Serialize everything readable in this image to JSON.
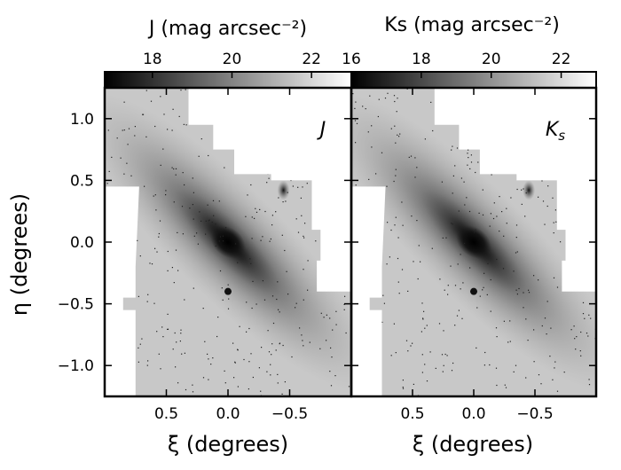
{
  "chart_data": {
    "type": "heatmap",
    "ylabel": "η (degrees)",
    "y_ticks": [
      "1.0",
      "0.5",
      "0.0",
      "−0.5",
      "−1.0"
    ],
    "y_tick_values": [
      1.0,
      0.5,
      0.0,
      -0.5,
      -1.0
    ],
    "ylim": [
      -1.25,
      1.25
    ],
    "xlim": [
      1.0,
      -1.0
    ],
    "grid": false,
    "colormap": "grayscale (dark = bright)",
    "panels": [
      {
        "label": "J",
        "band": "J",
        "xlabel": "ξ (degrees)",
        "x_ticks": [
          "0.5",
          "0.0",
          "−0.5"
        ],
        "x_tick_values": [
          0.5,
          0.0,
          -0.5
        ],
        "colorbar": {
          "title": "J (mag arcsec⁻²)",
          "ticks": [
            "18",
            "20",
            "22"
          ],
          "tick_values": [
            18,
            20,
            22
          ],
          "range": [
            16.8,
            23.0
          ]
        }
      },
      {
        "label": "Ks",
        "band": "Ks",
        "xlabel": "ξ (degrees)",
        "x_ticks": [
          "0.5",
          "0.0",
          "−0.5"
        ],
        "x_tick_values": [
          0.5,
          0.0,
          -0.5
        ],
        "colorbar": {
          "title": "Ks (mag arcsec⁻²)",
          "ticks": [
            "16",
            "18",
            "20",
            "22"
          ],
          "tick_values": [
            16,
            18,
            20,
            22
          ],
          "range": [
            16.0,
            23.0
          ]
        }
      }
    ]
  },
  "colors": {
    "background": "#ffffff",
    "frame": "#000000",
    "survey_field": "#c8c8c8",
    "galaxy_core": "#050505"
  }
}
